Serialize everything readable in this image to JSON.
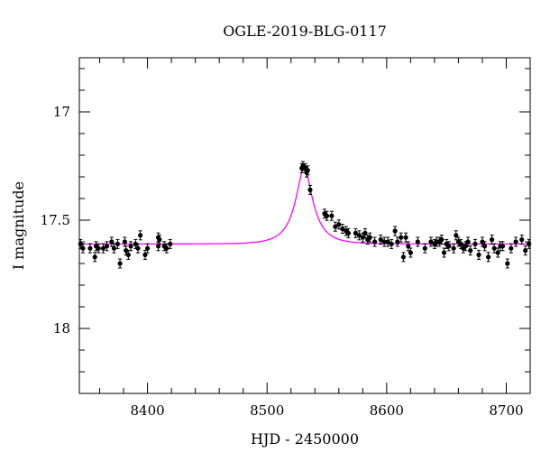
{
  "chart_data": {
    "type": "scatter",
    "title": "OGLE-2019-BLG-0117",
    "xlabel": "HJD - 2450000",
    "ylabel": "I magnitude",
    "xlim": [
      8343,
      8720
    ],
    "ylim": [
      18.3,
      16.75
    ],
    "y_inverted": true,
    "grid": false,
    "legend": "none",
    "xticks": [
      8400,
      8500,
      8600,
      8700
    ],
    "xtick_labels": [
      "8400",
      "8500",
      "8600",
      "8700"
    ],
    "yticks": [
      17,
      17.5,
      18
    ],
    "ytick_labels": [
      "17",
      "17.5",
      "18"
    ],
    "colors": {
      "points": "#000000",
      "model": "#ff00ff",
      "axes": "#000000"
    },
    "series": [
      {
        "type": "scatter",
        "x": [
          8344,
          8346,
          8352,
          8356,
          8357,
          8359,
          8363,
          8366,
          8370,
          8372,
          8375,
          8377,
          8381,
          8382,
          8384,
          8386,
          8390,
          8392,
          8394,
          8398,
          8400,
          8409,
          8409,
          8410,
          8414,
          8416,
          8419,
          8529,
          8530,
          8532,
          8533,
          8534,
          8536,
          8548,
          8550,
          8554,
          8557,
          8560,
          8563,
          8566,
          8568,
          8574,
          8577,
          8580,
          8582,
          8584,
          8586,
          8590,
          8595,
          8598,
          8601,
          8604,
          8607,
          8609,
          8612,
          8614,
          8616,
          8618,
          8620,
          8626,
          8632,
          8637,
          8640,
          8642,
          8644,
          8646,
          8648,
          8650,
          8652,
          8656,
          8658,
          8660,
          8662,
          8664,
          8666,
          8668,
          8670,
          8674,
          8677,
          8680,
          8682,
          8685,
          8688,
          8690,
          8693,
          8695,
          8697,
          8701,
          8704,
          8708,
          8713,
          8716,
          8719
        ],
        "y": [
          17.61,
          17.63,
          17.63,
          17.67,
          17.62,
          17.63,
          17.63,
          17.62,
          17.6,
          17.63,
          17.61,
          17.7,
          17.6,
          17.64,
          17.66,
          17.62,
          17.61,
          17.63,
          17.57,
          17.66,
          17.63,
          17.62,
          17.58,
          17.59,
          17.62,
          17.63,
          17.61,
          17.26,
          17.25,
          17.26,
          17.28,
          17.27,
          17.36,
          17.47,
          17.48,
          17.48,
          17.53,
          17.52,
          17.54,
          17.55,
          17.56,
          17.56,
          17.57,
          17.58,
          17.56,
          17.59,
          17.58,
          17.6,
          17.59,
          17.6,
          17.6,
          17.61,
          17.55,
          17.6,
          17.58,
          17.67,
          17.58,
          17.62,
          17.65,
          17.6,
          17.63,
          17.6,
          17.61,
          17.6,
          17.6,
          17.59,
          17.65,
          17.61,
          17.62,
          17.63,
          17.57,
          17.6,
          17.61,
          17.63,
          17.62,
          17.6,
          17.64,
          17.61,
          17.66,
          17.6,
          17.62,
          17.67,
          17.59,
          17.63,
          17.65,
          17.62,
          17.62,
          17.7,
          17.63,
          17.6,
          17.59,
          17.64,
          17.61
        ]
      },
      {
        "type": "line",
        "name": "model",
        "model": {
          "t0": 8531,
          "tE": 18,
          "u0": 0.35,
          "baseline": 17.61
        }
      }
    ]
  }
}
